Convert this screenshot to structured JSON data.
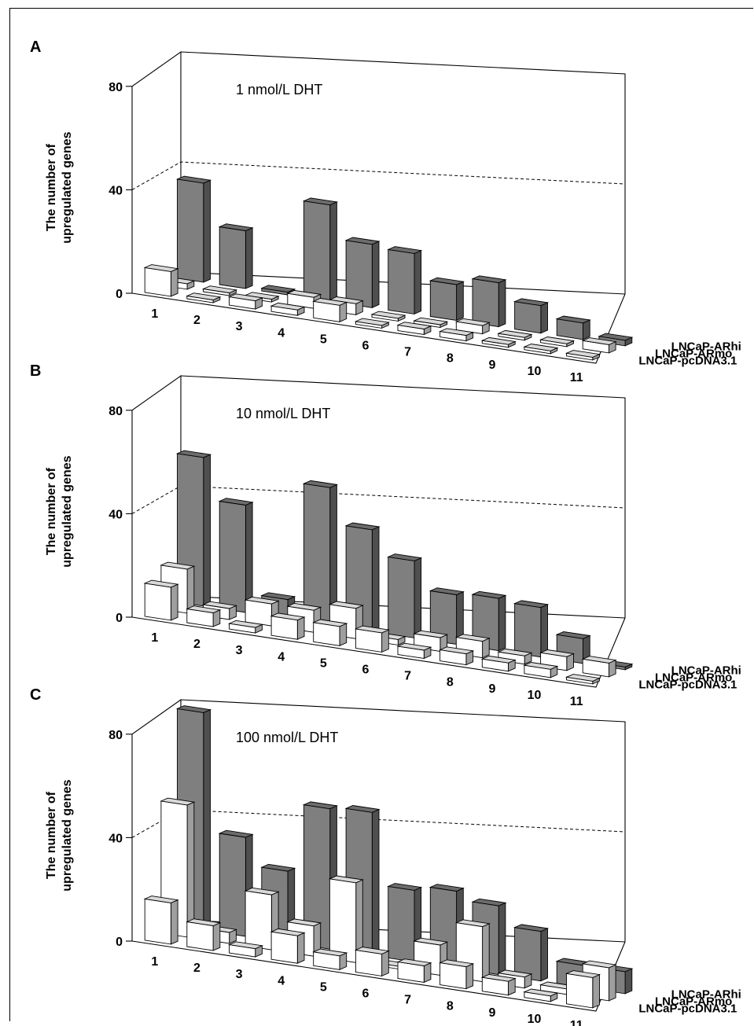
{
  "figure": {
    "panels": [
      {
        "letter": "A",
        "annotation": "1 nmol/L DHT"
      },
      {
        "letter": "B",
        "annotation": "10 nmol/L DHT"
      },
      {
        "letter": "C",
        "annotation": "100 nmol/L DHT"
      }
    ],
    "y_axis_label_line1": "The number of",
    "y_axis_label_line2": "upregulated genes",
    "series_colors": {
      "LNCaP-ARhi": "#7f7f7f",
      "LNCaP-ARmo": "#ffffff",
      "LNCaP-pcDNA3.1": "#ffffff"
    }
  },
  "chart_data": [
    {
      "type": "bar",
      "title": "1 nmol/L DHT",
      "ylabel": "The number of upregulated genes",
      "ylim": [
        0,
        80
      ],
      "yticks": [
        0,
        40,
        80
      ],
      "grid": "dashed line at 40 on back and side walls",
      "categories": [
        "1",
        "2",
        "3",
        "4",
        "5",
        "6",
        "7",
        "8",
        "9",
        "10",
        "11"
      ],
      "series": [
        {
          "name": "LNCaP-pcDNA3.1",
          "values": [
            9,
            1,
            3,
            2,
            6,
            1,
            2,
            2,
            1,
            1,
            1
          ]
        },
        {
          "name": "LNCaP-ARmo",
          "values": [
            2,
            1,
            1,
            4,
            4,
            1,
            1,
            3,
            1,
            1,
            3
          ]
        },
        {
          "name": "LNCaP-ARhi",
          "values": [
            36,
            21,
            1,
            35,
            23,
            22,
            13,
            16,
            10,
            6,
            2
          ]
        }
      ]
    },
    {
      "type": "bar",
      "title": "10 nmol/L DHT",
      "ylabel": "The number of upregulated genes",
      "ylim": [
        0,
        80
      ],
      "yticks": [
        0,
        40,
        80
      ],
      "grid": "dashed line at 40 on back and side walls",
      "categories": [
        "1",
        "2",
        "3",
        "4",
        "5",
        "6",
        "7",
        "8",
        "9",
        "10",
        "11"
      ],
      "series": [
        {
          "name": "LNCaP-pcDNA3.1",
          "values": [
            12,
            5,
            2,
            7,
            7,
            7,
            3,
            4,
            3,
            3,
            1
          ]
        },
        {
          "name": "LNCaP-ARmo",
          "values": [
            16,
            4,
            8,
            8,
            11,
            2,
            5,
            6,
            3,
            5,
            5
          ]
        },
        {
          "name": "LNCaP-ARhi",
          "values": [
            54,
            39,
            7,
            50,
            37,
            28,
            18,
            19,
            18,
            9,
            1
          ]
        }
      ]
    },
    {
      "type": "bar",
      "title": "100 nmol/L DHT",
      "ylabel": "The number of upregulated genes",
      "ylim": [
        0,
        80
      ],
      "yticks": [
        0,
        40,
        80
      ],
      "grid": "dashed line at 40 on back and side walls",
      "categories": [
        "1",
        "2",
        "3",
        "4",
        "5",
        "6",
        "7",
        "8",
        "9",
        "10",
        "11"
      ],
      "series": [
        {
          "name": "LNCaP-pcDNA3.1",
          "values": [
            15,
            9,
            3,
            10,
            5,
            8,
            6,
            8,
            5,
            2,
            11
          ]
        },
        {
          "name": "LNCaP-ARmo",
          "values": [
            48,
            4,
            20,
            11,
            29,
            1,
            11,
            20,
            4,
            2,
            12
          ]
        },
        {
          "name": "LNCaP-ARhi",
          "values": [
            79,
            36,
            26,
            51,
            52,
            26,
            28,
            25,
            18,
            8,
            8
          ]
        }
      ]
    }
  ]
}
